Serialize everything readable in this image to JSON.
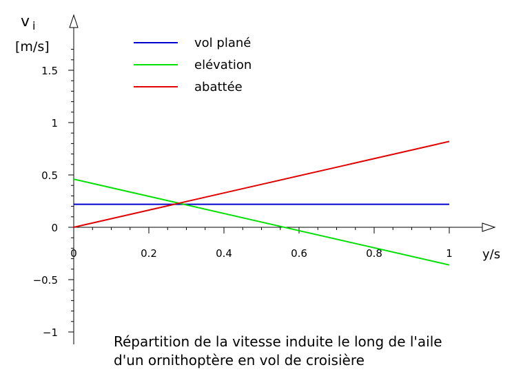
{
  "chart_data": {
    "type": "line",
    "title": "",
    "xlabel": "y/s",
    "ylabel": {
      "symbol": "v",
      "subscript": "i",
      "unit": "[m/s]"
    },
    "xlim": [
      0,
      1
    ],
    "ylim": [
      -1,
      1.5
    ],
    "x_ticks": [
      0,
      0.2,
      0.4,
      0.6,
      0.8,
      1
    ],
    "x_tick_labels": [
      "0",
      "0.2",
      "0.4",
      "0.6",
      "0.8",
      "1"
    ],
    "y_ticks": [
      -1,
      -0.5,
      0,
      0.5,
      1,
      1.5
    ],
    "y_tick_labels": [
      "−1",
      "−0.5",
      "0",
      "0.5",
      "1",
      "1.5"
    ],
    "grid": false,
    "legend_position": "top-left",
    "series": [
      {
        "name": "vol plané",
        "color": "#0000cc",
        "x": [
          0,
          1
        ],
        "y": [
          0.22,
          0.22
        ]
      },
      {
        "name": "elévation",
        "color": "#00e000",
        "x": [
          0,
          1
        ],
        "y": [
          0.46,
          -0.36
        ]
      },
      {
        "name": "abattée",
        "color": "#e00000",
        "x": [
          0,
          1
        ],
        "y": [
          0,
          0.82
        ]
      }
    ]
  },
  "caption": {
    "line1": "Répartition de la vitesse induite le long de l'aile",
    "line2": "d'un ornithoptère en vol de croisière"
  }
}
